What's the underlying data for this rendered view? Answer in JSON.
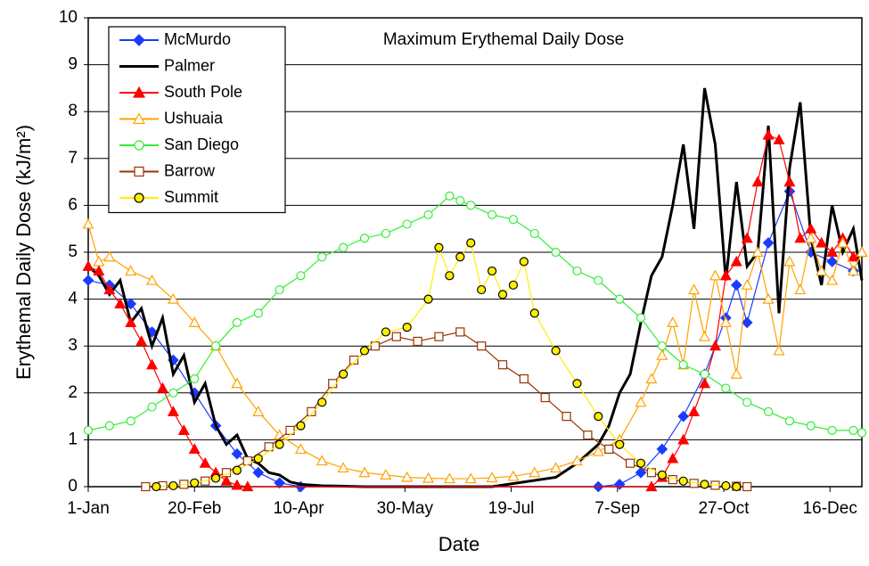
{
  "chart_data": {
    "type": "line",
    "title": "Maximum Erythemal Daily Dose",
    "x_label": "Date",
    "y_label": "Erythemal Daily Dose (kJ/m²)",
    "xlim": [
      0,
      364
    ],
    "ylim": [
      0,
      10
    ],
    "yticks": [
      0,
      1,
      2,
      3,
      4,
      5,
      6,
      7,
      8,
      9,
      10
    ],
    "xticks": [
      {
        "value": 0,
        "label": "1-Jan"
      },
      {
        "value": 50,
        "label": "20-Feb"
      },
      {
        "value": 99,
        "label": "10-Apr"
      },
      {
        "value": 149,
        "label": "30-May"
      },
      {
        "value": 199,
        "label": "19-Jul"
      },
      {
        "value": 249,
        "label": "7-Sep"
      },
      {
        "value": 299,
        "label": "27-Oct"
      },
      {
        "value": 349,
        "label": "16-Dec"
      }
    ],
    "grid": true,
    "legend": "upper left",
    "series": [
      {
        "name": "McMurdo",
        "color": "#1a3cff",
        "marker": "diamond",
        "marker_fill": "#1a3cff",
        "x": [
          0,
          10,
          20,
          30,
          40,
          50,
          60,
          70,
          80,
          90,
          100,
          240,
          250,
          260,
          270,
          280,
          290,
          300,
          305,
          310,
          320,
          330,
          340,
          350,
          360
        ],
        "values": [
          4.4,
          4.3,
          3.9,
          3.3,
          2.7,
          2.0,
          1.3,
          0.7,
          0.3,
          0.08,
          0,
          0,
          0.05,
          0.3,
          0.8,
          1.5,
          2.4,
          3.6,
          4.3,
          3.5,
          5.2,
          6.3,
          5.0,
          4.8,
          4.6
        ]
      },
      {
        "name": "Palmer",
        "color": "#000000",
        "marker": "none",
        "marker_fill": "none",
        "x": [
          0,
          5,
          10,
          15,
          20,
          25,
          30,
          35,
          40,
          45,
          50,
          55,
          60,
          65,
          70,
          75,
          80,
          85,
          90,
          95,
          100,
          110,
          130,
          160,
          190,
          220,
          230,
          240,
          245,
          250,
          255,
          260,
          265,
          270,
          275,
          280,
          285,
          290,
          295,
          300,
          305,
          310,
          315,
          320,
          325,
          330,
          335,
          340,
          345,
          350,
          355,
          360,
          364
        ],
        "values": [
          4.7,
          4.5,
          4.1,
          4.4,
          3.5,
          3.8,
          3.0,
          3.6,
          2.4,
          2.8,
          1.8,
          2.2,
          1.3,
          0.9,
          1.1,
          0.6,
          0.5,
          0.3,
          0.25,
          0.1,
          0.05,
          0.02,
          0,
          0,
          0,
          0.2,
          0.5,
          0.9,
          1.3,
          2.0,
          2.4,
          3.5,
          4.5,
          4.9,
          6.0,
          7.3,
          5.5,
          8.5,
          7.3,
          4.4,
          6.5,
          4.7,
          5.0,
          7.7,
          3.7,
          6.8,
          8.2,
          5.3,
          4.3,
          6.0,
          5.0,
          5.5,
          4.4
        ]
      },
      {
        "name": "South Pole",
        "color": "#ff0000",
        "marker": "triangle",
        "marker_fill": "#ff0000",
        "x": [
          0,
          5,
          10,
          15,
          20,
          25,
          30,
          35,
          40,
          45,
          50,
          55,
          60,
          65,
          70,
          75,
          265,
          270,
          275,
          280,
          285,
          290,
          295,
          300,
          305,
          310,
          315,
          320,
          325,
          330,
          335,
          340,
          345,
          350,
          355,
          360,
          364
        ],
        "values": [
          4.7,
          4.6,
          4.2,
          3.9,
          3.5,
          3.1,
          2.6,
          2.1,
          1.6,
          1.2,
          0.8,
          0.5,
          0.3,
          0.12,
          0.03,
          0,
          0,
          0.2,
          0.6,
          1.0,
          1.6,
          2.2,
          3.0,
          4.5,
          4.8,
          5.3,
          6.5,
          7.5,
          7.4,
          6.5,
          5.3,
          5.5,
          5.2,
          5.0,
          5.3,
          4.9,
          5.0
        ]
      },
      {
        "name": "Ushuaia",
        "color": "#ffa200",
        "marker": "triangle",
        "marker_fill": "#ffffff",
        "x": [
          0,
          5,
          10,
          20,
          30,
          40,
          50,
          60,
          70,
          80,
          90,
          100,
          110,
          120,
          130,
          140,
          150,
          160,
          170,
          180,
          190,
          200,
          210,
          220,
          230,
          240,
          250,
          260,
          265,
          270,
          275,
          280,
          285,
          290,
          295,
          300,
          305,
          310,
          315,
          320,
          325,
          330,
          335,
          340,
          345,
          350,
          355,
          360,
          364
        ],
        "values": [
          5.6,
          4.8,
          4.9,
          4.6,
          4.4,
          4.0,
          3.5,
          3.0,
          2.2,
          1.6,
          1.1,
          0.8,
          0.55,
          0.4,
          0.3,
          0.25,
          0.2,
          0.18,
          0.17,
          0.17,
          0.19,
          0.22,
          0.3,
          0.4,
          0.55,
          0.75,
          1.0,
          1.8,
          2.3,
          2.8,
          3.5,
          2.6,
          4.2,
          3.2,
          4.5,
          3.5,
          2.4,
          4.3,
          5.0,
          4.0,
          2.9,
          4.8,
          4.2,
          5.3,
          4.6,
          4.4,
          5.2,
          4.6,
          5.0
        ]
      },
      {
        "name": "San Diego",
        "color": "#33ee33",
        "marker": "circle",
        "marker_fill": "#ffffff",
        "x": [
          0,
          10,
          20,
          30,
          40,
          50,
          60,
          70,
          80,
          90,
          100,
          110,
          120,
          130,
          140,
          150,
          160,
          170,
          175,
          180,
          190,
          200,
          210,
          220,
          230,
          240,
          250,
          260,
          270,
          280,
          290,
          300,
          310,
          320,
          330,
          340,
          350,
          360,
          364
        ],
        "values": [
          1.2,
          1.3,
          1.4,
          1.7,
          2.0,
          2.3,
          3.0,
          3.5,
          3.7,
          4.2,
          4.5,
          4.9,
          5.1,
          5.3,
          5.4,
          5.6,
          5.8,
          6.2,
          6.1,
          6.0,
          5.8,
          5.7,
          5.4,
          5.0,
          4.6,
          4.4,
          4.0,
          3.6,
          3.0,
          2.6,
          2.4,
          2.1,
          1.8,
          1.6,
          1.4,
          1.3,
          1.2,
          1.2,
          1.15
        ]
      },
      {
        "name": "Barrow",
        "color": "#993300",
        "marker": "square",
        "marker_fill": "#ffffff",
        "x": [
          27,
          35,
          45,
          55,
          65,
          75,
          85,
          95,
          105,
          115,
          125,
          135,
          145,
          155,
          165,
          175,
          185,
          195,
          205,
          215,
          225,
          235,
          245,
          255,
          265,
          275,
          285,
          295,
          305,
          310
        ],
        "values": [
          0,
          0.02,
          0.05,
          0.12,
          0.3,
          0.55,
          0.85,
          1.2,
          1.6,
          2.2,
          2.7,
          3.0,
          3.2,
          3.1,
          3.2,
          3.3,
          3.0,
          2.6,
          2.3,
          1.9,
          1.5,
          1.1,
          0.8,
          0.5,
          0.3,
          0.15,
          0.07,
          0.03,
          0.01,
          0
        ]
      },
      {
        "name": "Summit",
        "color": "#ffee00",
        "marker": "circle",
        "marker_fill": "#ffee00",
        "x": [
          32,
          40,
          50,
          60,
          70,
          80,
          90,
          100,
          110,
          120,
          130,
          140,
          150,
          160,
          165,
          170,
          175,
          180,
          185,
          190,
          195,
          200,
          205,
          210,
          220,
          230,
          240,
          250,
          260,
          270,
          280,
          290,
          300,
          305
        ],
        "values": [
          0,
          0.02,
          0.08,
          0.18,
          0.35,
          0.6,
          0.9,
          1.3,
          1.8,
          2.4,
          2.9,
          3.3,
          3.4,
          4.0,
          5.1,
          4.5,
          4.9,
          5.2,
          4.2,
          4.6,
          4.1,
          4.3,
          4.8,
          3.7,
          2.9,
          2.2,
          1.5,
          0.9,
          0.5,
          0.25,
          0.12,
          0.05,
          0.02,
          0
        ]
      }
    ]
  }
}
